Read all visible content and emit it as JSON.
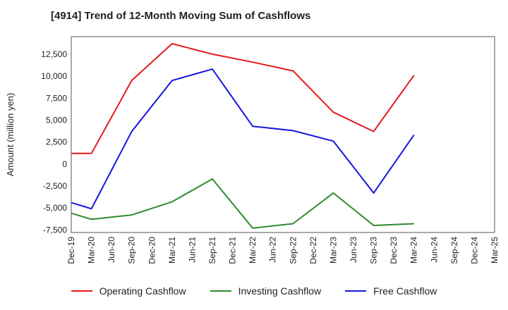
{
  "chart_data": {
    "type": "line",
    "title": "[4914]  Trend of 12-Month Moving Sum of Cashflows",
    "xlabel": "",
    "ylabel": "Amount (million yen)",
    "x_ticks": [
      "Dec-19",
      "Mar-20",
      "Jun-20",
      "Sep-20",
      "Dec-20",
      "Mar-21",
      "Jun-21",
      "Sep-21",
      "Dec-21",
      "Mar-22",
      "Jun-22",
      "Sep-22",
      "Dec-22",
      "Mar-23",
      "Jun-23",
      "Sep-23",
      "Dec-23",
      "Mar-24",
      "Jun-24",
      "Sep-24",
      "Dec-24",
      "Mar-25"
    ],
    "y_ticks": [
      12500,
      10000,
      7500,
      5000,
      2500,
      0,
      -2500,
      -5000,
      -7500
    ],
    "y_tick_labels": [
      "12,500",
      "10,000",
      "7,500",
      "5,000",
      "2,500",
      "0",
      "-2,500",
      "-5,000",
      "-7,500"
    ],
    "ylim": [
      -7800,
      14500
    ],
    "grid": true,
    "legend_position": "bottom",
    "series": [
      {
        "name": "Operating Cashflow",
        "color": "#e31a1c",
        "x": [
          "Dec-19",
          "Mar-20",
          "Sep-20",
          "Mar-21",
          "Sep-21",
          "Mar-22",
          "Sep-22",
          "Mar-23",
          "Sep-23",
          "Mar-24"
        ],
        "values": [
          1200,
          1200,
          9500,
          13700,
          12500,
          11600,
          10600,
          5900,
          3700,
          10100
        ]
      },
      {
        "name": "Investing Cashflow",
        "color": "#2e8b2e",
        "x": [
          "Dec-19",
          "Mar-20",
          "Sep-20",
          "Mar-21",
          "Sep-21",
          "Mar-22",
          "Sep-22",
          "Mar-23",
          "Sep-23",
          "Mar-24"
        ],
        "values": [
          -5600,
          -6300,
          -5800,
          -4300,
          -1700,
          -7300,
          -6800,
          -3300,
          -7000,
          -6800
        ]
      },
      {
        "name": "Free Cashflow",
        "color": "#1515e0",
        "x": [
          "Dec-19",
          "Mar-20",
          "Sep-20",
          "Mar-21",
          "Sep-21",
          "Mar-22",
          "Sep-22",
          "Mar-23",
          "Sep-23",
          "Mar-24"
        ],
        "values": [
          -4400,
          -5100,
          3700,
          9500,
          10800,
          4300,
          3800,
          2600,
          -3300,
          3300
        ]
      }
    ]
  }
}
